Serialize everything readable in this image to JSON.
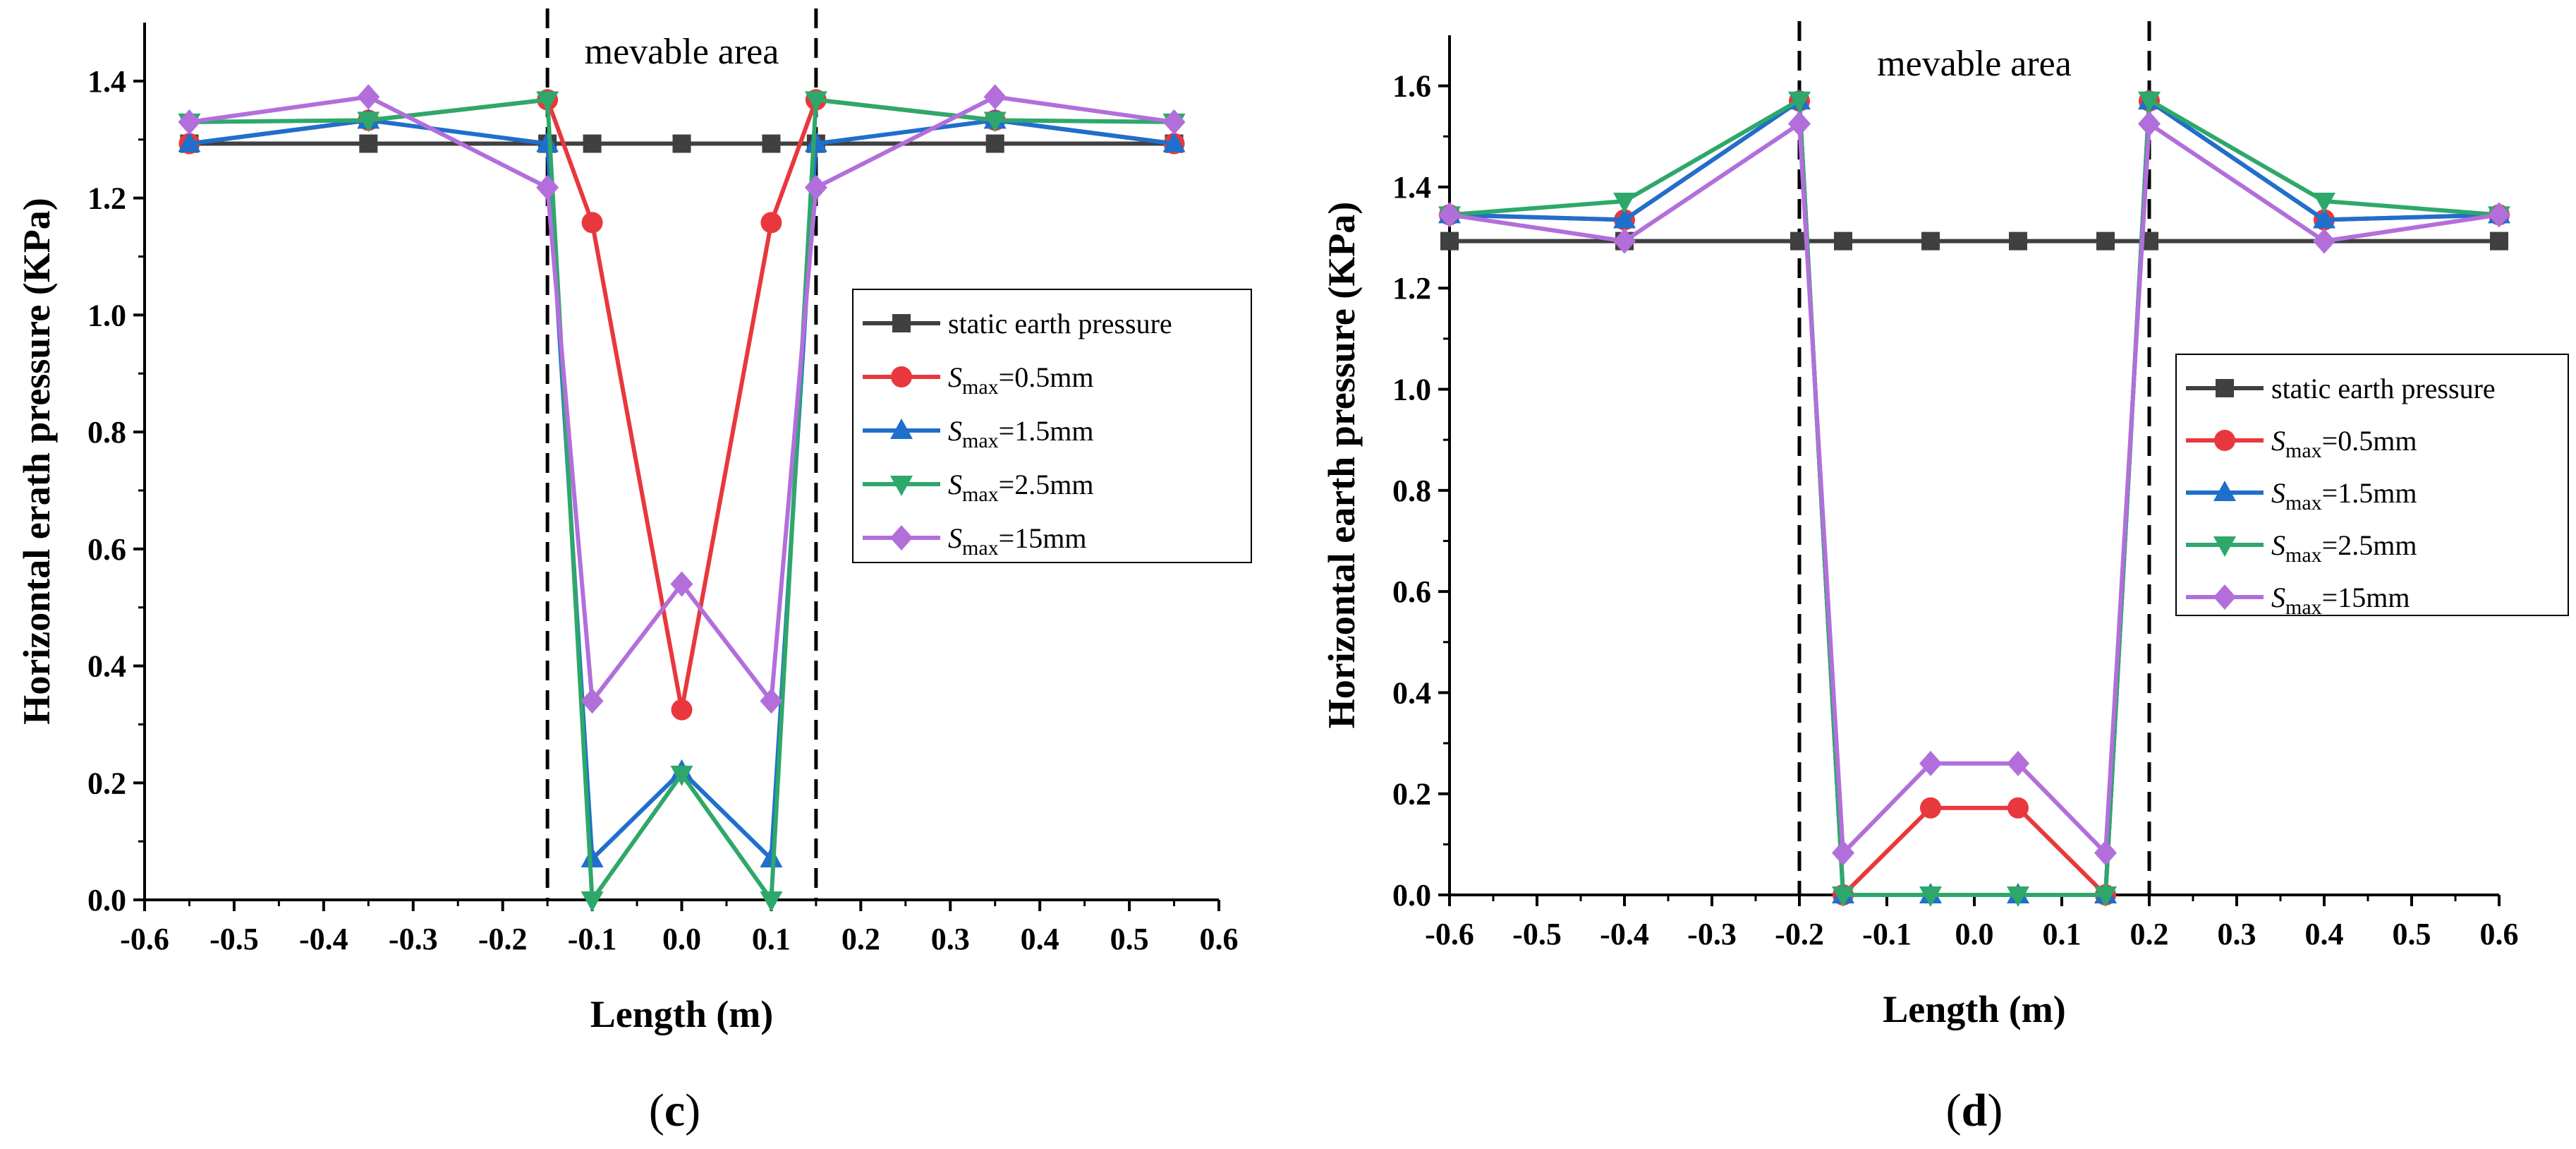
{
  "chart_data": [
    {
      "type": "line",
      "panel": "c",
      "panel_label": "c",
      "xlabel": "Length (m)",
      "ylabel": "Horizontal erath pressure (KPa)",
      "xlim": [
        -0.6,
        0.6
      ],
      "ylim": [
        0.0,
        1.5
      ],
      "x_ticks": [
        -0.6,
        -0.5,
        -0.4,
        -0.3,
        -0.2,
        -0.1,
        0.0,
        0.1,
        0.2,
        0.3,
        0.4,
        0.5,
        0.6
      ],
      "x_tick_labels": [
        "-0.6",
        "-0.5",
        "-0.4",
        "-0.3",
        "-0.2",
        "-0.1",
        "0.0",
        "0.1",
        "0.2",
        "0.3",
        "0.4",
        "0.5",
        "0.6"
      ],
      "y_ticks": [
        0.0,
        0.2,
        0.4,
        0.6,
        0.8,
        1.0,
        1.2,
        1.4
      ],
      "y_tick_labels": [
        "0.0",
        "0.2",
        "0.4",
        "0.6",
        "0.8",
        "1.0",
        "1.2",
        "1.4"
      ],
      "annotation": "mevable area",
      "vlines": [
        -0.15,
        0.15
      ],
      "legend_position": "right",
      "x": [
        -0.55,
        -0.35,
        -0.15,
        -0.1,
        0.0,
        0.1,
        0.15,
        0.35,
        0.55
      ],
      "series": [
        {
          "name": "static earth pressure",
          "label_main": "static earth pressure",
          "label_sub": "",
          "label_rest": "",
          "color": "#404040",
          "marker": "square",
          "values": [
            1.293,
            1.293,
            1.293,
            1.293,
            1.293,
            1.293,
            1.293,
            1.293,
            1.293
          ]
        },
        {
          "name": "Smax=0.5mm",
          "label_main": "S",
          "label_sub": "max",
          "label_rest": "=0.5mm",
          "color": "#e8383d",
          "marker": "circle",
          "values": [
            1.293,
            1.333,
            1.368,
            1.158,
            0.325,
            1.158,
            1.368,
            1.333,
            1.293
          ]
        },
        {
          "name": "Smax=1.5mm",
          "label_main": "S",
          "label_sub": "max",
          "label_rest": "=1.5mm",
          "color": "#1f6fcc",
          "marker": "triangle-up",
          "values": [
            1.293,
            1.333,
            1.293,
            0.07,
            0.22,
            0.07,
            1.293,
            1.333,
            1.293
          ]
        },
        {
          "name": "Smax=2.5mm",
          "label_main": "S",
          "label_sub": "max",
          "label_rest": "=2.5mm",
          "color": "#2ea86a",
          "marker": "triangle-down",
          "values": [
            1.33,
            1.333,
            1.368,
            0.0,
            0.215,
            0.0,
            1.368,
            1.333,
            1.33
          ]
        },
        {
          "name": "Smax=15mm",
          "label_main": "S",
          "label_sub": "max",
          "label_rest": "=15mm",
          "color": "#b26fdb",
          "marker": "diamond",
          "values": [
            1.33,
            1.373,
            1.218,
            0.34,
            0.54,
            0.34,
            1.218,
            1.373,
            1.33
          ]
        }
      ]
    },
    {
      "type": "line",
      "panel": "d",
      "panel_label": "d",
      "xlabel": "Length (m)",
      "ylabel": "Horizontal earth pressure (KPa)",
      "xlim": [
        -0.6,
        0.6
      ],
      "ylim": [
        0.0,
        1.7
      ],
      "x_ticks": [
        -0.6,
        -0.5,
        -0.4,
        -0.3,
        -0.2,
        -0.1,
        0.0,
        0.1,
        0.2,
        0.3,
        0.4,
        0.5,
        0.6
      ],
      "x_tick_labels": [
        "-0.6",
        "-0.5",
        "-0.4",
        "-0.3",
        "-0.2",
        "-0.1",
        "0.0",
        "0.1",
        "0.2",
        "0.3",
        "0.4",
        "0.5",
        "0.6"
      ],
      "y_ticks": [
        0.0,
        0.2,
        0.4,
        0.6,
        0.8,
        1.0,
        1.2,
        1.4,
        1.6
      ],
      "y_tick_labels": [
        "0.0",
        "0.2",
        "0.4",
        "0.6",
        "0.8",
        "1.0",
        "1.2",
        "1.4",
        "1.6"
      ],
      "annotation": "mevable area",
      "vlines": [
        -0.2,
        0.2
      ],
      "legend_position": "right",
      "x": [
        -0.6,
        -0.4,
        -0.2,
        -0.15,
        -0.05,
        0.05,
        0.15,
        0.2,
        0.4,
        0.6
      ],
      "static_x": [
        -0.6,
        -0.4,
        -0.2,
        -0.15,
        -0.05,
        0.05,
        0.15,
        0.2,
        0.6
      ],
      "static_values": [
        1.293,
        1.293,
        1.293,
        1.293,
        1.293,
        1.293,
        1.293,
        1.293,
        1.293
      ],
      "series": [
        {
          "name": "static earth pressure",
          "label_main": "static earth pressure",
          "label_sub": "",
          "label_rest": "",
          "color": "#404040",
          "marker": "square",
          "values": null
        },
        {
          "name": "Smax=0.5mm",
          "label_main": "S",
          "label_sub": "max",
          "label_rest": "=0.5mm",
          "color": "#e8383d",
          "marker": "circle",
          "values": [
            1.345,
            1.335,
            1.57,
            0.0,
            0.172,
            0.172,
            0.0,
            1.57,
            1.335,
            1.345
          ]
        },
        {
          "name": "Smax=1.5mm",
          "label_main": "S",
          "label_sub": "max",
          "label_rest": "=1.5mm",
          "color": "#1f6fcc",
          "marker": "triangle-up",
          "values": [
            1.345,
            1.335,
            1.57,
            0.0,
            0.0,
            0.0,
            0.0,
            1.57,
            1.335,
            1.345
          ]
        },
        {
          "name": "Smax=2.5mm",
          "label_main": "S",
          "label_sub": "max",
          "label_rest": "=2.5mm",
          "color": "#2ea86a",
          "marker": "triangle-down",
          "values": [
            1.345,
            1.372,
            1.572,
            0.0,
            0.0,
            0.0,
            0.0,
            1.572,
            1.372,
            1.345
          ]
        },
        {
          "name": "Smax=15mm",
          "label_main": "S",
          "label_sub": "max",
          "label_rest": "=15mm",
          "color": "#b26fdb",
          "marker": "diamond",
          "values": [
            1.345,
            1.293,
            1.525,
            0.083,
            0.26,
            0.26,
            0.083,
            1.525,
            1.293,
            1.345
          ]
        }
      ]
    }
  ]
}
